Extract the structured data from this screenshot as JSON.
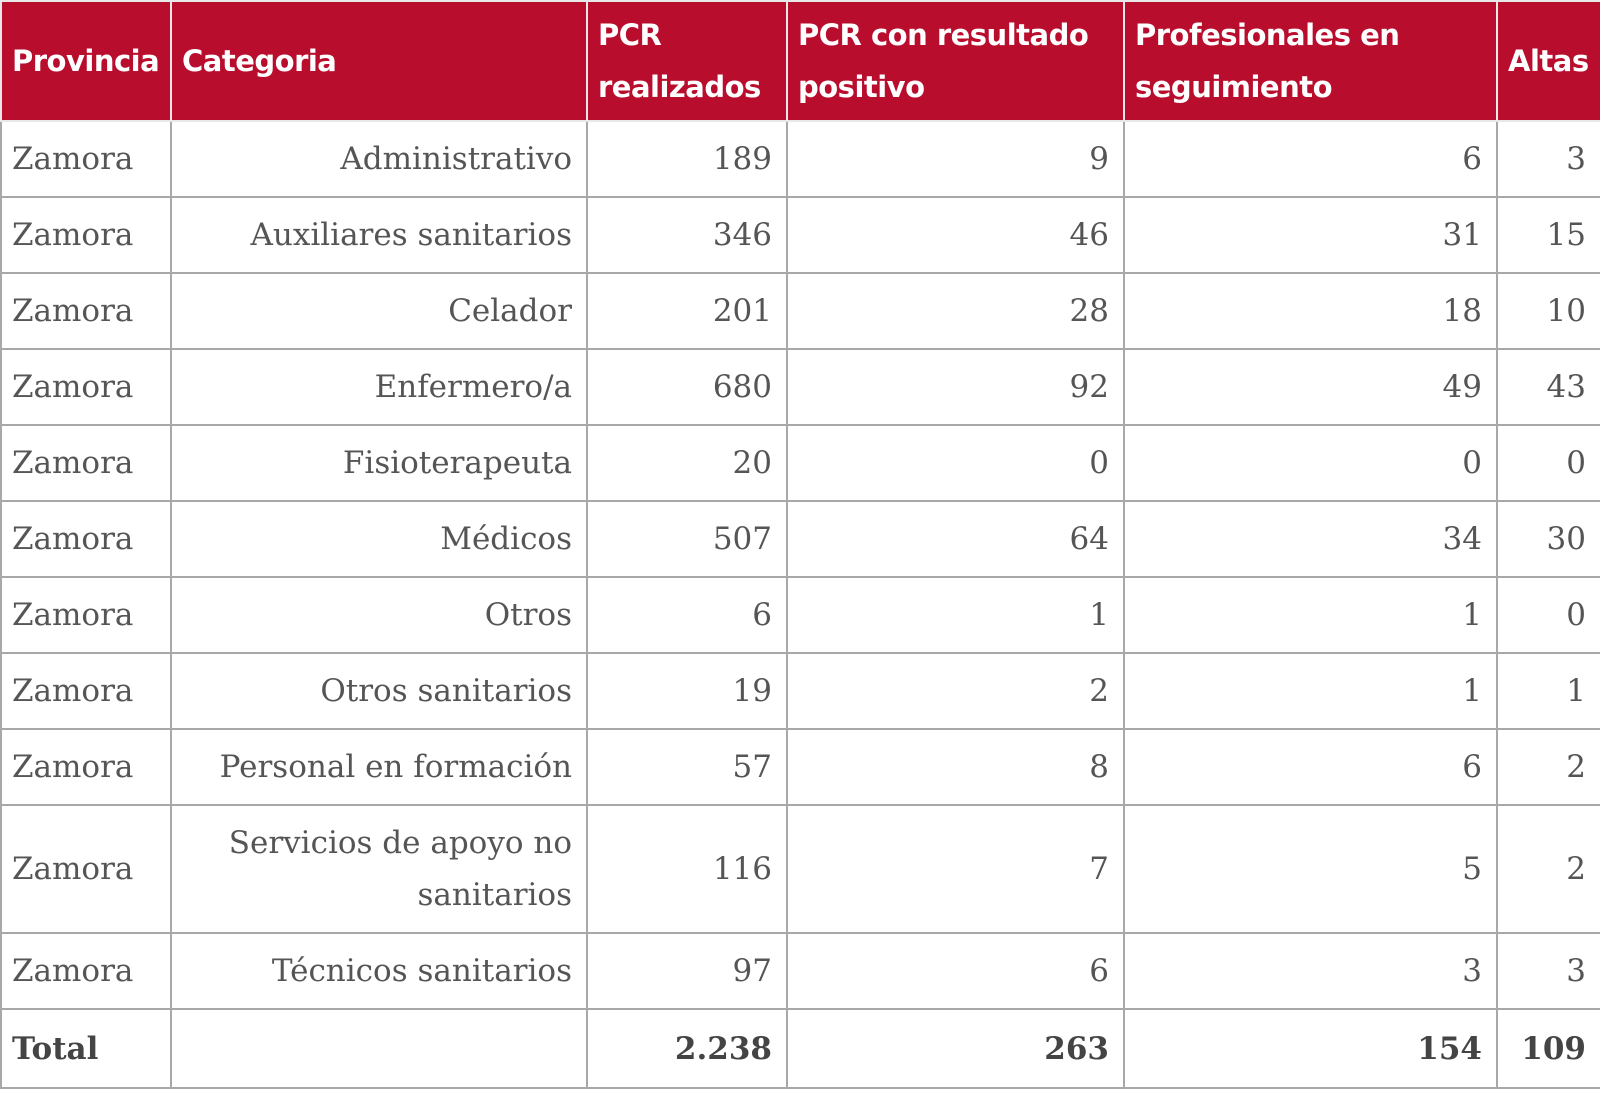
{
  "headers": [
    "Provincia",
    "Categoria",
    "PCR realizados",
    "PCR con resultado positivo",
    "Profesionales en seguimiento",
    "Altas"
  ],
  "rows": [
    [
      "Zamora",
      "Administrativo",
      "189",
      "9",
      "6",
      "3"
    ],
    [
      "Zamora",
      "Auxiliares sanitarios",
      "346",
      "46",
      "31",
      "15"
    ],
    [
      "Zamora",
      "Celador",
      "201",
      "28",
      "18",
      "10"
    ],
    [
      "Zamora",
      "Enfermero/a",
      "680",
      "92",
      "49",
      "43"
    ],
    [
      "Zamora",
      "Fisioterapeuta",
      "20",
      "0",
      "0",
      "0"
    ],
    [
      "Zamora",
      "Médicos",
      "507",
      "64",
      "34",
      "30"
    ],
    [
      "Zamora",
      "Otros",
      "6",
      "1",
      "1",
      "0"
    ],
    [
      "Zamora",
      "Otros sanitarios",
      "19",
      "2",
      "1",
      "1"
    ],
    [
      "Zamora",
      "Personal en formación",
      "57",
      "8",
      "6",
      "2"
    ],
    [
      "Zamora",
      "Servicios de apoyo no sanitarios",
      "116",
      "7",
      "5",
      "2"
    ],
    [
      "Zamora",
      "Técnicos sanitarios",
      "97",
      "6",
      "3",
      "3"
    ]
  ],
  "total": [
    "Total",
    "",
    "2.238",
    "263",
    "154",
    "109"
  ],
  "colors": {
    "header_bg": "#b90d2e",
    "header_text": "#ffffff",
    "body_text": "#555555",
    "border": "#a8a8a8"
  }
}
